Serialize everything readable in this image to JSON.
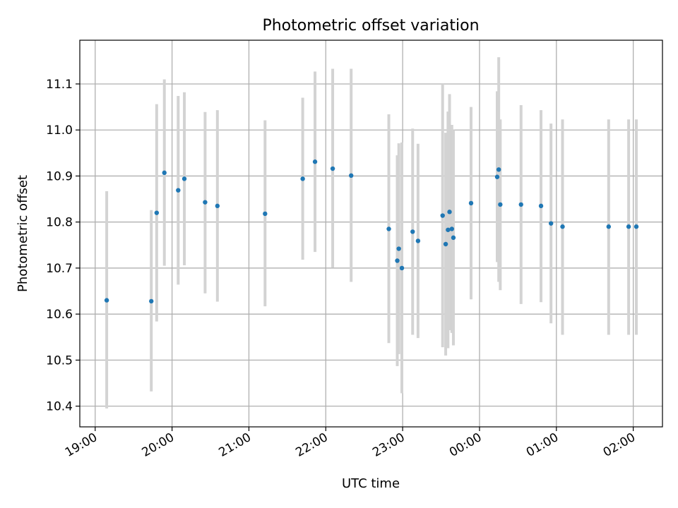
{
  "chart_data": {
    "type": "scatter",
    "title": "Photometric offset variation",
    "xlabel": "UTC time",
    "ylabel": "Photometric offset",
    "x_unit": "hours",
    "xlim": [
      18.8,
      26.38
    ],
    "ylim": [
      10.355,
      11.195
    ],
    "xticks": [
      {
        "x": 19,
        "label": "19:00"
      },
      {
        "x": 20,
        "label": "20:00"
      },
      {
        "x": 21,
        "label": "21:00"
      },
      {
        "x": 22,
        "label": "22:00"
      },
      {
        "x": 23,
        "label": "23:00"
      },
      {
        "x": 24,
        "label": "00:00"
      },
      {
        "x": 25,
        "label": "01:00"
      },
      {
        "x": 26,
        "label": "02:00"
      }
    ],
    "yticks": [
      {
        "y": 10.4,
        "label": "10.4"
      },
      {
        "y": 10.5,
        "label": "10.5"
      },
      {
        "y": 10.6,
        "label": "10.6"
      },
      {
        "y": 10.7,
        "label": "10.7"
      },
      {
        "y": 10.8,
        "label": "10.8"
      },
      {
        "y": 10.9,
        "label": "10.9"
      },
      {
        "y": 11.0,
        "label": "11.0"
      },
      {
        "y": 11.1,
        "label": "11.1"
      }
    ],
    "grid": true,
    "point_color": "#1f77b4",
    "errorbar_color": "#d3d3d3",
    "points": [
      {
        "x": 19.15,
        "y": 10.63,
        "lo": 10.395,
        "hi": 10.867
      },
      {
        "x": 19.73,
        "y": 10.628,
        "lo": 10.432,
        "hi": 10.826
      },
      {
        "x": 19.8,
        "y": 10.82,
        "lo": 10.584,
        "hi": 11.056
      },
      {
        "x": 19.9,
        "y": 10.907,
        "lo": 10.705,
        "hi": 11.11
      },
      {
        "x": 20.08,
        "y": 10.869,
        "lo": 10.664,
        "hi": 11.074
      },
      {
        "x": 20.16,
        "y": 10.894,
        "lo": 10.706,
        "hi": 11.082
      },
      {
        "x": 20.43,
        "y": 10.843,
        "lo": 10.645,
        "hi": 11.039
      },
      {
        "x": 20.59,
        "y": 10.835,
        "lo": 10.627,
        "hi": 11.043
      },
      {
        "x": 21.21,
        "y": 10.818,
        "lo": 10.617,
        "hi": 11.021
      },
      {
        "x": 21.7,
        "y": 10.894,
        "lo": 10.718,
        "hi": 11.07
      },
      {
        "x": 21.86,
        "y": 10.931,
        "lo": 10.735,
        "hi": 11.127
      },
      {
        "x": 22.09,
        "y": 10.916,
        "lo": 10.701,
        "hi": 11.133
      },
      {
        "x": 22.33,
        "y": 10.901,
        "lo": 10.67,
        "hi": 11.133
      },
      {
        "x": 22.82,
        "y": 10.785,
        "lo": 10.537,
        "hi": 11.034
      },
      {
        "x": 22.93,
        "y": 10.716,
        "lo": 10.487,
        "hi": 10.945
      },
      {
        "x": 22.95,
        "y": 10.742,
        "lo": 10.513,
        "hi": 10.971
      },
      {
        "x": 22.99,
        "y": 10.7,
        "lo": 10.428,
        "hi": 10.973
      },
      {
        "x": 23.13,
        "y": 10.779,
        "lo": 10.555,
        "hi": 11.003
      },
      {
        "x": 23.2,
        "y": 10.759,
        "lo": 10.548,
        "hi": 10.97
      },
      {
        "x": 23.52,
        "y": 10.814,
        "lo": 10.528,
        "hi": 11.1
      },
      {
        "x": 23.56,
        "y": 10.752,
        "lo": 10.51,
        "hi": 10.994
      },
      {
        "x": 23.59,
        "y": 10.783,
        "lo": 10.526,
        "hi": 11.04
      },
      {
        "x": 23.61,
        "y": 10.822,
        "lo": 10.565,
        "hi": 11.078
      },
      {
        "x": 23.64,
        "y": 10.785,
        "lo": 10.559,
        "hi": 11.011
      },
      {
        "x": 23.66,
        "y": 10.766,
        "lo": 10.532,
        "hi": 11.0
      },
      {
        "x": 23.89,
        "y": 10.841,
        "lo": 10.632,
        "hi": 11.05
      },
      {
        "x": 24.23,
        "y": 10.898,
        "lo": 10.713,
        "hi": 11.084
      },
      {
        "x": 24.25,
        "y": 10.914,
        "lo": 10.67,
        "hi": 11.158
      },
      {
        "x": 24.27,
        "y": 10.838,
        "lo": 10.652,
        "hi": 11.023
      },
      {
        "x": 24.54,
        "y": 10.838,
        "lo": 10.622,
        "hi": 11.054
      },
      {
        "x": 24.8,
        "y": 10.835,
        "lo": 10.626,
        "hi": 11.043
      },
      {
        "x": 24.93,
        "y": 10.797,
        "lo": 10.58,
        "hi": 11.014
      },
      {
        "x": 25.08,
        "y": 10.79,
        "lo": 10.555,
        "hi": 11.023
      },
      {
        "x": 25.68,
        "y": 10.79,
        "lo": 10.555,
        "hi": 11.023
      },
      {
        "x": 25.94,
        "y": 10.79,
        "lo": 10.555,
        "hi": 11.023
      },
      {
        "x": 26.04,
        "y": 10.79,
        "lo": 10.555,
        "hi": 11.023
      }
    ]
  }
}
